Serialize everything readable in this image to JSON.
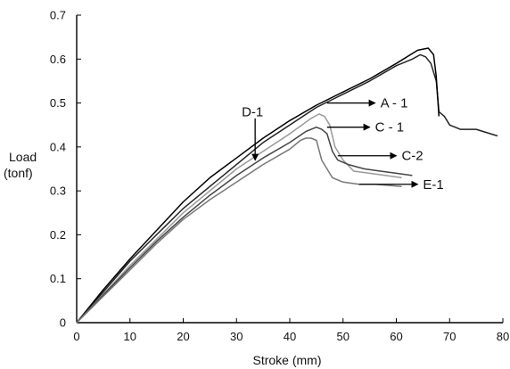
{
  "chart_data": {
    "type": "line",
    "xlabel": "Stroke (mm)",
    "ylabel_lines": [
      "Load",
      "(tonf)"
    ],
    "xlim": [
      0,
      80
    ],
    "ylim": [
      0,
      0.7
    ],
    "xticks": [
      0,
      10,
      20,
      30,
      40,
      50,
      60,
      70,
      80
    ],
    "xtick_labels": [
      "0",
      "10",
      "20",
      "30",
      "40",
      "50",
      "60",
      "70",
      "80"
    ],
    "yticks": [
      0,
      0.1,
      0.2,
      0.3,
      0.4,
      0.5,
      0.6,
      0.7
    ],
    "ytick_labels": [
      "0",
      "0.1",
      "0.2",
      "0.3",
      "0.4",
      "0.5",
      "0.6",
      "0.7"
    ],
    "grid": false,
    "series": [
      {
        "name": "A - 1",
        "color": "#222222",
        "x": [
          0,
          5,
          10,
          15,
          20,
          25,
          30,
          35,
          40,
          45,
          50,
          55,
          60,
          63,
          64.5,
          65.5,
          66.5,
          67.5,
          68,
          69,
          70,
          72,
          75,
          79
        ],
        "y": [
          0,
          0.07,
          0.14,
          0.2,
          0.26,
          0.31,
          0.36,
          0.41,
          0.45,
          0.49,
          0.52,
          0.55,
          0.585,
          0.6,
          0.61,
          0.605,
          0.59,
          0.55,
          0.48,
          0.47,
          0.45,
          0.44,
          0.44,
          0.425
        ]
      },
      {
        "name": "D-1",
        "color": "#000000",
        "x": [
          0,
          5,
          10,
          15,
          20,
          25,
          30,
          35,
          40,
          45,
          50,
          55,
          60,
          64,
          66,
          67,
          67.5,
          68
        ],
        "y": [
          0,
          0.075,
          0.145,
          0.21,
          0.275,
          0.33,
          0.375,
          0.42,
          0.46,
          0.495,
          0.525,
          0.555,
          0.59,
          0.62,
          0.625,
          0.61,
          0.56,
          0.47
        ]
      },
      {
        "name": "C - 1",
        "color": "#999999",
        "x": [
          0,
          5,
          10,
          15,
          20,
          25,
          30,
          35,
          40,
          44,
          45.5,
          46.5,
          47.5,
          48.5,
          50,
          52,
          55,
          58,
          61
        ],
        "y": [
          0,
          0.065,
          0.13,
          0.19,
          0.25,
          0.3,
          0.35,
          0.39,
          0.43,
          0.465,
          0.475,
          0.47,
          0.45,
          0.4,
          0.37,
          0.345,
          0.34,
          0.335,
          0.33
        ]
      },
      {
        "name": "C-2",
        "color": "#444444",
        "x": [
          0,
          5,
          10,
          15,
          20,
          25,
          30,
          35,
          40,
          43,
          45,
          46,
          47,
          48,
          49,
          51,
          54,
          57,
          60,
          63
        ],
        "y": [
          0,
          0.063,
          0.125,
          0.185,
          0.24,
          0.29,
          0.335,
          0.375,
          0.41,
          0.435,
          0.445,
          0.44,
          0.43,
          0.39,
          0.37,
          0.36,
          0.35,
          0.345,
          0.34,
          0.335
        ]
      },
      {
        "name": "E-1",
        "color": "#777777",
        "x": [
          0,
          5,
          10,
          15,
          20,
          25,
          30,
          35,
          40,
          42,
          43,
          44,
          45,
          46,
          48,
          50,
          53,
          56,
          59,
          61
        ],
        "y": [
          0,
          0.06,
          0.12,
          0.18,
          0.235,
          0.28,
          0.32,
          0.36,
          0.395,
          0.415,
          0.42,
          0.42,
          0.415,
          0.37,
          0.33,
          0.32,
          0.315,
          0.315,
          0.312,
          0.31
        ]
      }
    ],
    "annotations": [
      {
        "label": "D-1",
        "x_from": 33.5,
        "y_from": 0.465,
        "x_to": 33.5,
        "y_to": 0.37,
        "label_x": 33,
        "label_y": 0.48
      },
      {
        "label": "A - 1",
        "x_from": 47,
        "y_from": 0.5,
        "x_to": 56,
        "y_to": 0.5,
        "label_x": 57,
        "label_y": 0.5
      },
      {
        "label": "C - 1",
        "x_from": 47,
        "y_from": 0.445,
        "x_to": 55,
        "y_to": 0.445,
        "label_x": 56,
        "label_y": 0.445
      },
      {
        "label": "C-2",
        "x_from": 49,
        "y_from": 0.38,
        "x_to": 60,
        "y_to": 0.38,
        "label_x": 61,
        "label_y": 0.38
      },
      {
        "label": "E-1",
        "x_from": 53,
        "y_from": 0.315,
        "x_to": 64,
        "y_to": 0.315,
        "label_x": 65,
        "label_y": 0.315
      }
    ]
  }
}
